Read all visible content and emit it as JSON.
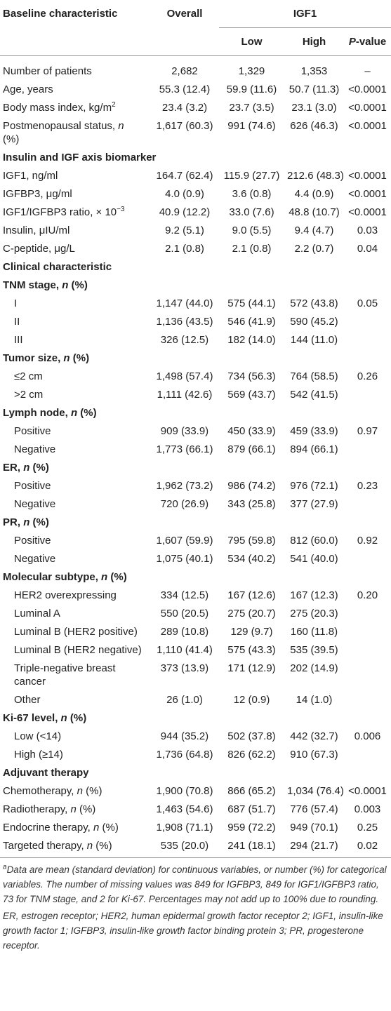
{
  "header": {
    "label": [
      {
        "text": "Baseline characteristic"
      }
    ],
    "overall": [
      {
        "text": "Overall"
      }
    ],
    "group": [
      {
        "text": "IGF1"
      }
    ],
    "low": [
      {
        "text": "Low"
      }
    ],
    "high": [
      {
        "text": "High"
      }
    ],
    "p": [
      {
        "text": "P",
        "style": "italic"
      },
      {
        "text": "-value"
      }
    ]
  },
  "rows": [
    {
      "kind": "data",
      "label": [
        {
          "text": "Number of patients"
        }
      ],
      "cells": [
        "2,682",
        "1,329",
        "1,353",
        "–"
      ]
    },
    {
      "kind": "data",
      "label": [
        {
          "text": "Age, years"
        }
      ],
      "cells": [
        "55.3 (12.4)",
        "59.9 (11.6)",
        "50.7 (11.3)",
        "<0.0001"
      ]
    },
    {
      "kind": "data",
      "label": [
        {
          "text": "Body mass index, kg/m"
        },
        {
          "text": "2",
          "style": "sup"
        }
      ],
      "cells": [
        "23.4 (3.2)",
        "23.7 (3.5)",
        "23.1 (3.0)",
        "<0.0001"
      ]
    },
    {
      "kind": "data",
      "label": [
        {
          "text": "Postmenopausal status, "
        },
        {
          "text": "n",
          "style": "italic"
        },
        {
          "text": " (%)"
        }
      ],
      "cells": [
        "1,617 (60.3)",
        "991 (74.6)",
        "626 (46.3)",
        "<0.0001"
      ]
    },
    {
      "kind": "section",
      "label": [
        {
          "text": "Insulin and IGF axis biomarker"
        }
      ]
    },
    {
      "kind": "data",
      "label": [
        {
          "text": "IGF1, ng/ml"
        }
      ],
      "cells": [
        "164.7 (62.4)",
        "115.9 (27.7)",
        "212.6 (48.3)",
        "<0.0001"
      ]
    },
    {
      "kind": "data",
      "label": [
        {
          "text": "IGFBP3, μg/ml"
        }
      ],
      "cells": [
        "4.0 (0.9)",
        "3.6 (0.8)",
        "4.4 (0.9)",
        "<0.0001"
      ]
    },
    {
      "kind": "data",
      "label": [
        {
          "text": "IGF1/IGFBP3 ratio, × 10"
        },
        {
          "text": "−3",
          "style": "sup"
        }
      ],
      "cells": [
        "40.9 (12.2)",
        "33.0 (7.6)",
        "48.8 (10.7)",
        "<0.0001"
      ]
    },
    {
      "kind": "data",
      "label": [
        {
          "text": "Insulin, μIU/ml"
        }
      ],
      "cells": [
        "9.2 (5.1)",
        "9.0 (5.5)",
        "9.4 (4.7)",
        "0.03"
      ]
    },
    {
      "kind": "data",
      "label": [
        {
          "text": "C-peptide, μg/L"
        }
      ],
      "cells": [
        "2.1 (0.8)",
        "2.1 (0.8)",
        "2.2 (0.7)",
        "0.04"
      ]
    },
    {
      "kind": "section",
      "label": [
        {
          "text": "Clinical characteristic"
        }
      ]
    },
    {
      "kind": "section",
      "label": [
        {
          "text": "TNM stage, "
        },
        {
          "text": "n",
          "style": "italic"
        },
        {
          "text": " (%)"
        }
      ]
    },
    {
      "kind": "sub",
      "label": [
        {
          "text": "I"
        }
      ],
      "cells": [
        "1,147 (44.0)",
        "575 (44.1)",
        "572 (43.8)",
        "0.05"
      ]
    },
    {
      "kind": "sub",
      "label": [
        {
          "text": "II"
        }
      ],
      "cells": [
        "1,136 (43.5)",
        "546 (41.9)",
        "590 (45.2)"
      ]
    },
    {
      "kind": "sub",
      "label": [
        {
          "text": "III"
        }
      ],
      "cells": [
        "326 (12.5)",
        "182 (14.0)",
        "144 (11.0)"
      ]
    },
    {
      "kind": "section",
      "label": [
        {
          "text": "Tumor size, "
        },
        {
          "text": "n",
          "style": "italic"
        },
        {
          "text": " (%)"
        }
      ]
    },
    {
      "kind": "sub",
      "label": [
        {
          "text": "≤2 cm"
        }
      ],
      "cells": [
        "1,498 (57.4)",
        "734 (56.3)",
        "764 (58.5)",
        "0.26"
      ]
    },
    {
      "kind": "sub",
      "label": [
        {
          "text": ">2 cm"
        }
      ],
      "cells": [
        "1,111 (42.6)",
        "569 (43.7)",
        "542 (41.5)"
      ]
    },
    {
      "kind": "section",
      "label": [
        {
          "text": "Lymph node, "
        },
        {
          "text": "n",
          "style": "italic"
        },
        {
          "text": " (%)"
        }
      ]
    },
    {
      "kind": "sub",
      "label": [
        {
          "text": "Positive"
        }
      ],
      "cells": [
        "909 (33.9)",
        "450 (33.9)",
        "459 (33.9)",
        "0.97"
      ]
    },
    {
      "kind": "sub",
      "label": [
        {
          "text": "Negative"
        }
      ],
      "cells": [
        "1,773 (66.1)",
        "879 (66.1)",
        "894 (66.1)"
      ]
    },
    {
      "kind": "section",
      "label": [
        {
          "text": "ER, "
        },
        {
          "text": "n",
          "style": "italic"
        },
        {
          "text": " (%)"
        }
      ]
    },
    {
      "kind": "sub",
      "label": [
        {
          "text": "Positive"
        }
      ],
      "cells": [
        "1,962 (73.2)",
        "986 (74.2)",
        "976 (72.1)",
        "0.23"
      ]
    },
    {
      "kind": "sub",
      "label": [
        {
          "text": "Negative"
        }
      ],
      "cells": [
        "720 (26.9)",
        "343 (25.8)",
        "377 (27.9)"
      ]
    },
    {
      "kind": "section",
      "label": [
        {
          "text": "PR, "
        },
        {
          "text": "n",
          "style": "italic"
        },
        {
          "text": " (%)"
        }
      ]
    },
    {
      "kind": "sub",
      "label": [
        {
          "text": "Positive"
        }
      ],
      "cells": [
        "1,607 (59.9)",
        "795 (59.8)",
        "812 (60.0)",
        "0.92"
      ]
    },
    {
      "kind": "sub",
      "label": [
        {
          "text": "Negative"
        }
      ],
      "cells": [
        "1,075 (40.1)",
        "534 (40.2)",
        "541 (40.0)"
      ]
    },
    {
      "kind": "section",
      "label": [
        {
          "text": "Molecular subtype, "
        },
        {
          "text": "n",
          "style": "italic"
        },
        {
          "text": " (%)"
        }
      ]
    },
    {
      "kind": "sub",
      "label": [
        {
          "text": "HER2 overexpressing"
        }
      ],
      "cells": [
        "334 (12.5)",
        "167 (12.6)",
        "167 (12.3)",
        "0.20"
      ]
    },
    {
      "kind": "sub",
      "label": [
        {
          "text": "Luminal A"
        }
      ],
      "cells": [
        "550 (20.5)",
        "275 (20.7)",
        "275 (20.3)"
      ]
    },
    {
      "kind": "sub",
      "label": [
        {
          "text": "Luminal B (HER2 positive)"
        }
      ],
      "cells": [
        "289 (10.8)",
        "129 (9.7)",
        "160 (11.8)"
      ]
    },
    {
      "kind": "sub",
      "label": [
        {
          "text": "Luminal B (HER2 negative)"
        }
      ],
      "cells": [
        "1,110 (41.4)",
        "575 (43.3)",
        "535 (39.5)"
      ]
    },
    {
      "kind": "sub",
      "label": [
        {
          "text": "Triple-negative breast cancer"
        }
      ],
      "cells": [
        "373 (13.9)",
        "171 (12.9)",
        "202 (14.9)"
      ]
    },
    {
      "kind": "sub",
      "label": [
        {
          "text": "Other"
        }
      ],
      "cells": [
        "26 (1.0)",
        "12 (0.9)",
        "14 (1.0)"
      ]
    },
    {
      "kind": "section",
      "label": [
        {
          "text": "Ki-67 level, "
        },
        {
          "text": "n",
          "style": "italic"
        },
        {
          "text": " (%)"
        }
      ]
    },
    {
      "kind": "sub",
      "label": [
        {
          "text": "Low (<14)"
        }
      ],
      "cells": [
        "944 (35.2)",
        "502 (37.8)",
        "442 (32.7)",
        "0.006"
      ]
    },
    {
      "kind": "sub",
      "label": [
        {
          "text": "High (≥14)"
        }
      ],
      "cells": [
        "1,736 (64.8)",
        "826 (62.2)",
        "910 (67.3)"
      ]
    },
    {
      "kind": "section",
      "label": [
        {
          "text": "Adjuvant therapy"
        }
      ]
    },
    {
      "kind": "data",
      "label": [
        {
          "text": "Chemotherapy, "
        },
        {
          "text": "n",
          "style": "italic"
        },
        {
          "text": " (%)"
        }
      ],
      "cells": [
        "1,900 (70.8)",
        "866 (65.2)",
        "1,034 (76.4)",
        "<0.0001"
      ]
    },
    {
      "kind": "data",
      "label": [
        {
          "text": "Radiotherapy, "
        },
        {
          "text": "n",
          "style": "italic"
        },
        {
          "text": " (%)"
        }
      ],
      "cells": [
        "1,463 (54.6)",
        "687 (51.7)",
        "776 (57.4)",
        "0.003"
      ]
    },
    {
      "kind": "data",
      "label": [
        {
          "text": "Endocrine therapy, "
        },
        {
          "text": "n",
          "style": "italic"
        },
        {
          "text": " (%)"
        }
      ],
      "cells": [
        "1,908 (71.1)",
        "959 (72.2)",
        "949 (70.1)",
        "0.25"
      ]
    },
    {
      "kind": "data",
      "label": [
        {
          "text": "Targeted therapy, "
        },
        {
          "text": "n",
          "style": "italic"
        },
        {
          "text": " (%)"
        }
      ],
      "cells": [
        "535 (20.0)",
        "241 (18.1)",
        "294 (21.7)",
        "0.02"
      ]
    }
  ],
  "footnotes": [
    [
      {
        "text": "a",
        "style": "sup"
      },
      {
        "text": "Data are mean (standard deviation) for continuous variables, or number (%) for categorical variables. The number of missing values was 849 for IGFBP3, 849 for IGF1/IGFBP3 ratio, 73 for TNM stage, and 2 for Ki-67. Percentages may not add up to 100% due to rounding."
      }
    ],
    [
      {
        "text": "ER, estrogen receptor; HER2, human epidermal growth factor receptor 2; IGF1, insulin-like growth factor 1; IGFBP3, insulin-like growth factor binding protein 3; PR, progesterone receptor."
      }
    ]
  ]
}
